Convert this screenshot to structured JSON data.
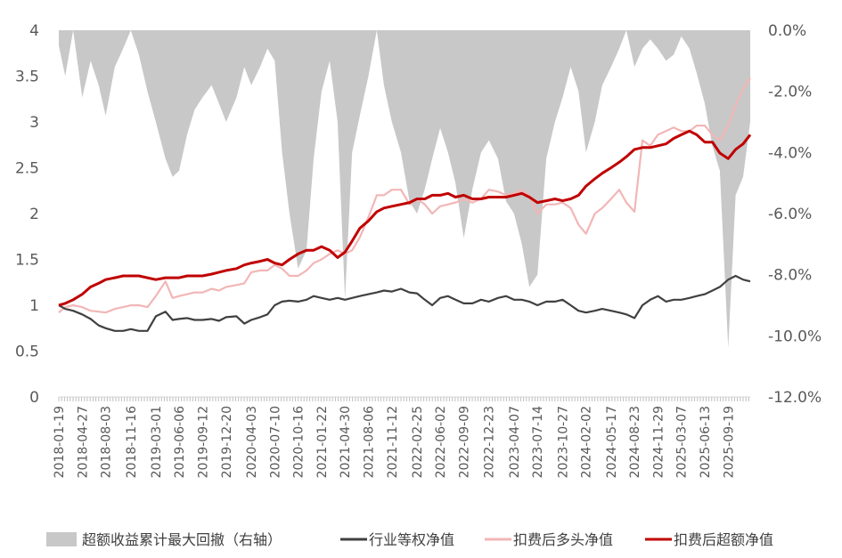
{
  "chart_data": {
    "type": "line",
    "title": "",
    "xlabel": "",
    "ylabel": "",
    "ylim_left": [
      0,
      4
    ],
    "ylim_right": [
      -12.0,
      0.0
    ],
    "y_left_ticks": [
      "0",
      "0.5",
      "1",
      "1.5",
      "2",
      "2.5",
      "3",
      "3.5",
      "4"
    ],
    "y_right_ticks": [
      "-12.0%",
      "-10.0%",
      "-8.0%",
      "-6.0%",
      "-4.0%",
      "-2.0%",
      "0.0%"
    ],
    "x_ticks": [
      "2018-01-19",
      "2018-04-27",
      "2018-08-03",
      "2018-11-16",
      "2019-03-01",
      "2019-06-06",
      "2019-09-12",
      "2019-12-20",
      "2020-04-03",
      "2020-07-10",
      "2020-10-16",
      "2021-01-22",
      "2021-04-30",
      "2021-08-06",
      "2021-11-12",
      "2022-02-25",
      "2022-06-02",
      "2022-09-09",
      "2022-12-23",
      "2023-04-07",
      "2023-07-14",
      "2023-10-27",
      "2024-02-02",
      "2024-05-17",
      "2024-08-23",
      "2024-11-29",
      "2025-03-07",
      "2025-06-13",
      "2025-09-19"
    ],
    "legend_position": "bottom",
    "grid": false,
    "series": [
      {
        "name": "超额收益累计最大回撤（右轴）",
        "type": "area",
        "axis": "right",
        "color": "#c8c8c8",
        "x": [
          "2018-01-19",
          "2018-02-15",
          "2018-03-20",
          "2018-04-27",
          "2018-06-01",
          "2018-07-05",
          "2018-08-03",
          "2018-09-10",
          "2018-10-15",
          "2018-11-16",
          "2018-12-20",
          "2019-01-25",
          "2019-03-01",
          "2019-04-10",
          "2019-05-10",
          "2019-06-06",
          "2019-07-10",
          "2019-08-10",
          "2019-09-12",
          "2019-10-20",
          "2019-11-20",
          "2019-12-20",
          "2020-02-01",
          "2020-03-05",
          "2020-04-03",
          "2020-05-10",
          "2020-06-10",
          "2020-07-10",
          "2020-08-10",
          "2020-09-10",
          "2020-10-16",
          "2020-11-20",
          "2020-12-20",
          "2021-01-22",
          "2021-02-25",
          "2021-03-30",
          "2021-04-30",
          "2021-05-30",
          "2021-07-01",
          "2021-08-06",
          "2021-09-10",
          "2021-10-10",
          "2021-11-12",
          "2021-12-20",
          "2022-01-25",
          "2022-02-25",
          "2022-03-30",
          "2022-04-30",
          "2022-06-02",
          "2022-07-05",
          "2022-08-05",
          "2022-09-09",
          "2022-10-15",
          "2022-11-20",
          "2022-12-23",
          "2023-01-30",
          "2023-03-05",
          "2023-04-07",
          "2023-05-10",
          "2023-06-10",
          "2023-07-14",
          "2023-08-20",
          "2023-09-25",
          "2023-10-27",
          "2023-11-30",
          "2024-01-02",
          "2024-02-02",
          "2024-03-10",
          "2024-04-10",
          "2024-05-17",
          "2024-06-20",
          "2024-07-20",
          "2024-08-23",
          "2024-09-25",
          "2024-10-28",
          "2024-11-29",
          "2025-01-02",
          "2025-02-03",
          "2025-03-07",
          "2025-04-10",
          "2025-05-10",
          "2025-06-13",
          "2025-07-15",
          "2025-08-15",
          "2025-09-19",
          "2025-10-20",
          "2025-11-20",
          "2025-12-20"
        ],
        "values": [
          -0.5,
          -1.5,
          0,
          -2.2,
          -1.0,
          -1.8,
          -2.8,
          -1.2,
          -0.6,
          0,
          -0.8,
          -2.0,
          -3.0,
          -4.2,
          -4.8,
          -4.6,
          -3.4,
          -2.6,
          -2.2,
          -1.8,
          -2.4,
          -3.0,
          -2.2,
          -1.2,
          -1.8,
          -1.2,
          -0.6,
          -1.0,
          -4.0,
          -6.0,
          -7.8,
          -7.2,
          -4.2,
          -2.0,
          -1.0,
          -3.0,
          -8.8,
          -4.0,
          -2.8,
          -1.5,
          0,
          -1.8,
          -3.0,
          -4.0,
          -5.6,
          -6.0,
          -5.2,
          -4.2,
          -3.2,
          -4.0,
          -5.0,
          -6.8,
          -5.2,
          -4.0,
          -3.6,
          -4.2,
          -5.6,
          -6.0,
          -7.0,
          -8.4,
          -8.0,
          -4.2,
          -3.0,
          -2.2,
          -1.2,
          -2.0,
          -4.0,
          -3.0,
          -1.8,
          -1.2,
          -0.6,
          0,
          -1.2,
          -0.6,
          -0.3,
          -0.6,
          -1.0,
          -0.8,
          -0.2,
          -0.6,
          -1.4,
          -2.4,
          -3.8,
          -4.6,
          -10.4,
          -5.4,
          -4.8,
          -3.0
        ]
      },
      {
        "name": "行业等权净值",
        "type": "line",
        "axis": "left",
        "color": "#404040",
        "x": [
          "2018-01-19",
          "2018-02-15",
          "2018-03-20",
          "2018-04-27",
          "2018-06-01",
          "2018-07-05",
          "2018-08-03",
          "2018-09-10",
          "2018-10-15",
          "2018-11-16",
          "2018-12-20",
          "2019-01-25",
          "2019-03-01",
          "2019-04-10",
          "2019-05-10",
          "2019-06-06",
          "2019-07-10",
          "2019-08-10",
          "2019-09-12",
          "2019-10-20",
          "2019-11-20",
          "2019-12-20",
          "2020-02-01",
          "2020-03-05",
          "2020-04-03",
          "2020-05-10",
          "2020-06-10",
          "2020-07-10",
          "2020-08-10",
          "2020-09-10",
          "2020-10-16",
          "2020-11-20",
          "2020-12-20",
          "2021-01-22",
          "2021-02-25",
          "2021-03-30",
          "2021-04-30",
          "2021-05-30",
          "2021-07-01",
          "2021-08-06",
          "2021-09-10",
          "2021-10-10",
          "2021-11-12",
          "2021-12-20",
          "2022-01-25",
          "2022-02-25",
          "2022-03-30",
          "2022-04-30",
          "2022-06-02",
          "2022-07-05",
          "2022-08-05",
          "2022-09-09",
          "2022-10-15",
          "2022-11-20",
          "2022-12-23",
          "2023-01-30",
          "2023-03-05",
          "2023-04-07",
          "2023-05-10",
          "2023-06-10",
          "2023-07-14",
          "2023-08-20",
          "2023-09-25",
          "2023-10-27",
          "2023-11-30",
          "2024-01-02",
          "2024-02-02",
          "2024-03-10",
          "2024-04-10",
          "2024-05-17",
          "2024-06-20",
          "2024-07-20",
          "2024-08-23",
          "2024-09-25",
          "2024-10-28",
          "2024-11-29",
          "2025-01-02",
          "2025-02-03",
          "2025-03-07",
          "2025-04-10",
          "2025-05-10",
          "2025-06-13",
          "2025-07-15",
          "2025-08-15",
          "2025-09-19",
          "2025-10-20",
          "2025-11-20",
          "2025-12-20"
        ],
        "values": [
          1.0,
          0.96,
          0.94,
          0.9,
          0.85,
          0.78,
          0.75,
          0.72,
          0.72,
          0.74,
          0.72,
          0.72,
          0.88,
          0.93,
          0.84,
          0.85,
          0.86,
          0.84,
          0.84,
          0.85,
          0.83,
          0.87,
          0.88,
          0.8,
          0.84,
          0.87,
          0.9,
          1.0,
          1.04,
          1.05,
          1.04,
          1.06,
          1.1,
          1.08,
          1.06,
          1.08,
          1.06,
          1.08,
          1.1,
          1.12,
          1.14,
          1.16,
          1.15,
          1.18,
          1.14,
          1.13,
          1.06,
          1.0,
          1.08,
          1.1,
          1.06,
          1.02,
          1.02,
          1.06,
          1.04,
          1.08,
          1.1,
          1.06,
          1.06,
          1.04,
          1.0,
          1.04,
          1.04,
          1.06,
          1.0,
          0.94,
          0.92,
          0.94,
          0.96,
          0.94,
          0.92,
          0.9,
          0.86,
          1.0,
          1.06,
          1.1,
          1.04,
          1.06,
          1.06,
          1.08,
          1.1,
          1.12,
          1.16,
          1.2,
          1.28,
          1.32,
          1.28,
          1.26
        ]
      },
      {
        "name": "扣费后多头净值",
        "type": "line",
        "axis": "left",
        "color": "#f2b6b6",
        "x": [
          "2018-01-19",
          "2018-02-15",
          "2018-03-20",
          "2018-04-27",
          "2018-06-01",
          "2018-07-05",
          "2018-08-03",
          "2018-09-10",
          "2018-10-15",
          "2018-11-16",
          "2018-12-20",
          "2019-01-25",
          "2019-03-01",
          "2019-04-10",
          "2019-05-10",
          "2019-06-06",
          "2019-07-10",
          "2019-08-10",
          "2019-09-12",
          "2019-10-20",
          "2019-11-20",
          "2019-12-20",
          "2020-02-01",
          "2020-03-05",
          "2020-04-03",
          "2020-05-10",
          "2020-06-10",
          "2020-07-10",
          "2020-08-10",
          "2020-09-10",
          "2020-10-16",
          "2020-11-20",
          "2020-12-20",
          "2021-01-22",
          "2021-02-25",
          "2021-03-30",
          "2021-04-30",
          "2021-05-30",
          "2021-07-01",
          "2021-08-06",
          "2021-09-10",
          "2021-10-10",
          "2021-11-12",
          "2021-12-20",
          "2022-01-25",
          "2022-02-25",
          "2022-03-30",
          "2022-04-30",
          "2022-06-02",
          "2022-07-05",
          "2022-08-05",
          "2022-09-09",
          "2022-10-15",
          "2022-11-20",
          "2022-12-23",
          "2023-01-30",
          "2023-03-05",
          "2023-04-07",
          "2023-05-10",
          "2023-06-10",
          "2023-07-14",
          "2023-08-20",
          "2023-09-25",
          "2023-10-27",
          "2023-11-30",
          "2024-01-02",
          "2024-02-02",
          "2024-03-10",
          "2024-04-10",
          "2024-05-17",
          "2024-06-20",
          "2024-07-20",
          "2024-08-23",
          "2024-09-25",
          "2024-10-28",
          "2024-11-29",
          "2025-01-02",
          "2025-02-03",
          "2025-03-07",
          "2025-04-10",
          "2025-05-10",
          "2025-06-13",
          "2025-07-15",
          "2025-08-15",
          "2025-09-19",
          "2025-10-20",
          "2025-11-20",
          "2025-12-20"
        ],
        "values": [
          0.92,
          0.98,
          1.0,
          0.98,
          0.94,
          0.93,
          0.92,
          0.96,
          0.98,
          1.0,
          1.0,
          0.98,
          1.1,
          1.26,
          1.08,
          1.1,
          1.12,
          1.14,
          1.14,
          1.18,
          1.16,
          1.2,
          1.22,
          1.24,
          1.36,
          1.38,
          1.38,
          1.44,
          1.4,
          1.32,
          1.32,
          1.38,
          1.46,
          1.5,
          1.56,
          1.6,
          1.56,
          1.6,
          1.74,
          1.96,
          2.2,
          2.2,
          2.26,
          2.26,
          2.1,
          2.16,
          2.1,
          2.0,
          2.08,
          2.1,
          2.12,
          2.16,
          2.12,
          2.16,
          2.26,
          2.24,
          2.2,
          2.22,
          2.26,
          2.2,
          2.0,
          2.1,
          2.1,
          2.12,
          2.06,
          1.88,
          1.78,
          2.0,
          2.06,
          2.16,
          2.26,
          2.12,
          2.02,
          2.8,
          2.74,
          2.86,
          2.9,
          2.94,
          2.9,
          2.9,
          2.96,
          2.96,
          2.86,
          2.8,
          2.96,
          3.18,
          3.36,
          3.48
        ]
      },
      {
        "name": "扣费后超额净值",
        "type": "line",
        "axis": "left",
        "color": "#c00000",
        "x": [
          "2018-01-19",
          "2018-02-15",
          "2018-03-20",
          "2018-04-27",
          "2018-06-01",
          "2018-07-05",
          "2018-08-03",
          "2018-09-10",
          "2018-10-15",
          "2018-11-16",
          "2018-12-20",
          "2019-01-25",
          "2019-03-01",
          "2019-04-10",
          "2019-05-10",
          "2019-06-06",
          "2019-07-10",
          "2019-08-10",
          "2019-09-12",
          "2019-10-20",
          "2019-11-20",
          "2019-12-20",
          "2020-02-01",
          "2020-03-05",
          "2020-04-03",
          "2020-05-10",
          "2020-06-10",
          "2020-07-10",
          "2020-08-10",
          "2020-09-10",
          "2020-10-16",
          "2020-11-20",
          "2020-12-20",
          "2021-01-22",
          "2021-02-25",
          "2021-03-30",
          "2021-04-30",
          "2021-05-30",
          "2021-07-01",
          "2021-08-06",
          "2021-09-10",
          "2021-10-10",
          "2021-11-12",
          "2021-12-20",
          "2022-01-25",
          "2022-02-25",
          "2022-03-30",
          "2022-04-30",
          "2022-06-02",
          "2022-07-05",
          "2022-08-05",
          "2022-09-09",
          "2022-10-15",
          "2022-11-20",
          "2022-12-23",
          "2023-01-30",
          "2023-03-05",
          "2023-04-07",
          "2023-05-10",
          "2023-06-10",
          "2023-07-14",
          "2023-08-20",
          "2023-09-25",
          "2023-10-27",
          "2023-11-30",
          "2024-01-02",
          "2024-02-02",
          "2024-03-10",
          "2024-04-10",
          "2024-05-17",
          "2024-06-20",
          "2024-07-20",
          "2024-08-23",
          "2024-09-25",
          "2024-10-28",
          "2024-11-29",
          "2025-01-02",
          "2025-02-03",
          "2025-03-07",
          "2025-04-10",
          "2025-05-10",
          "2025-06-13",
          "2025-07-15",
          "2025-08-15",
          "2025-09-19",
          "2025-10-20",
          "2025-11-20",
          "2025-12-20"
        ],
        "values": [
          1.0,
          1.02,
          1.06,
          1.12,
          1.2,
          1.24,
          1.28,
          1.3,
          1.32,
          1.32,
          1.32,
          1.3,
          1.28,
          1.3,
          1.3,
          1.3,
          1.32,
          1.32,
          1.32,
          1.34,
          1.36,
          1.38,
          1.4,
          1.44,
          1.46,
          1.48,
          1.5,
          1.46,
          1.44,
          1.5,
          1.56,
          1.6,
          1.6,
          1.64,
          1.6,
          1.52,
          1.58,
          1.7,
          1.84,
          1.92,
          2.02,
          2.06,
          2.08,
          2.1,
          2.12,
          2.16,
          2.16,
          2.2,
          2.2,
          2.22,
          2.18,
          2.2,
          2.16,
          2.16,
          2.18,
          2.18,
          2.18,
          2.2,
          2.22,
          2.18,
          2.12,
          2.14,
          2.16,
          2.14,
          2.16,
          2.2,
          2.3,
          2.38,
          2.44,
          2.5,
          2.56,
          2.62,
          2.7,
          2.72,
          2.72,
          2.74,
          2.76,
          2.82,
          2.86,
          2.9,
          2.86,
          2.78,
          2.78,
          2.66,
          2.6,
          2.7,
          2.76,
          2.86
        ]
      }
    ]
  }
}
